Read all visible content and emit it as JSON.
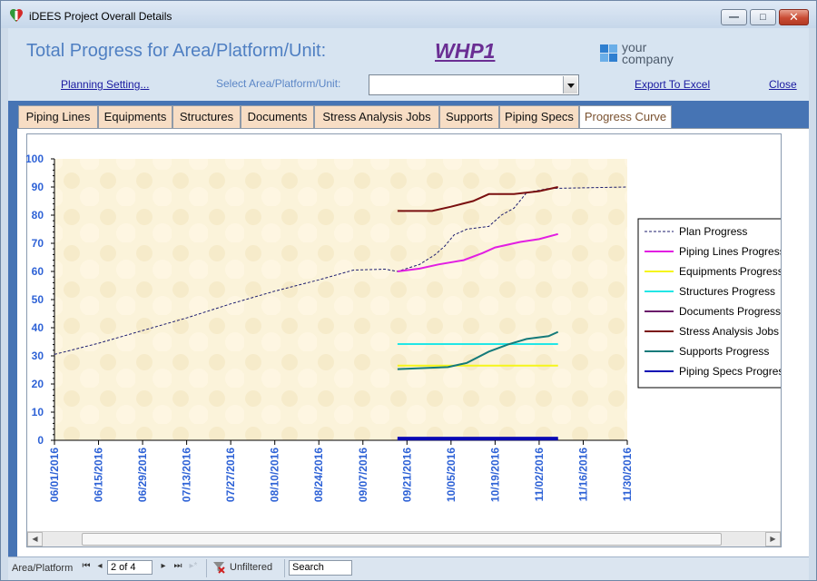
{
  "window": {
    "title": "iDEES Project Overall Details",
    "minimize_glyph": "—",
    "maximize_glyph": "□",
    "close_glyph": "✕"
  },
  "header": {
    "title": "Total Progress for Area/Platform/Unit:",
    "unit_code": "WHP1",
    "logo_line1": "your",
    "logo_line2": "company",
    "planning_link": "Planning Setting...",
    "select_label": "Select Area/Platform/Unit:",
    "select_value": "",
    "export_link": "Export To Excel",
    "close_link": "Close"
  },
  "tabs": [
    {
      "label": "Piping Lines",
      "active": false
    },
    {
      "label": "Equipments",
      "active": false
    },
    {
      "label": "Structures",
      "active": false
    },
    {
      "label": "Documents",
      "active": false
    },
    {
      "label": "Stress Analysis Jobs",
      "active": false
    },
    {
      "label": "Supports",
      "active": false
    },
    {
      "label": "Piping Specs",
      "active": false
    },
    {
      "label": "Progress Curve",
      "active": true
    }
  ],
  "chart_data": {
    "type": "line",
    "title": "",
    "xlabel": "",
    "ylabel": "",
    "ylim": [
      0,
      100
    ],
    "y_ticks": [
      0,
      10,
      20,
      30,
      40,
      50,
      60,
      70,
      80,
      90,
      100
    ],
    "x_ticks": [
      "06/01/2016",
      "06/15/2016",
      "06/29/2016",
      "07/13/2016",
      "07/27/2016",
      "08/10/2016",
      "08/24/2016",
      "09/07/2016",
      "09/21/2016",
      "10/05/2016",
      "10/19/2016",
      "11/02/2016",
      "11/16/2016",
      "11/30/2016"
    ],
    "x_range": [
      "06/01/2016",
      "11/30/2016"
    ],
    "grid": false,
    "legend_position": "right",
    "plot_background": "#fbf3da",
    "series": [
      {
        "name": "Plan Progress",
        "color": "#1c1c6e",
        "style": "dashed",
        "points": [
          [
            "06/01/2016",
            30.5
          ],
          [
            "06/15/2016",
            34.5
          ],
          [
            "06/29/2016",
            39
          ],
          [
            "07/13/2016",
            43.5
          ],
          [
            "07/27/2016",
            48.5
          ],
          [
            "08/10/2016",
            53
          ],
          [
            "08/24/2016",
            57
          ],
          [
            "09/04/2016",
            60.5
          ],
          [
            "09/14/2016",
            60.8
          ],
          [
            "09/18/2016",
            60
          ],
          [
            "09/25/2016",
            62.5
          ],
          [
            "09/30/2016",
            66
          ],
          [
            "10/03/2016",
            69
          ],
          [
            "10/06/2016",
            73
          ],
          [
            "10/10/2016",
            75
          ],
          [
            "10/17/2016",
            76
          ],
          [
            "10/21/2016",
            80
          ],
          [
            "10/25/2016",
            82.5
          ],
          [
            "10/29/2016",
            88
          ],
          [
            "11/05/2016",
            89.5
          ],
          [
            "11/30/2016",
            90
          ]
        ]
      },
      {
        "name": "Piping Lines Progress",
        "color": "#e21ee2",
        "style": "solid",
        "points": [
          [
            "09/18/2016",
            60
          ],
          [
            "09/25/2016",
            61
          ],
          [
            "10/01/2016",
            62.5
          ],
          [
            "10/09/2016",
            64
          ],
          [
            "10/15/2016",
            66.5
          ],
          [
            "10/19/2016",
            68.5
          ],
          [
            "10/27/2016",
            70.5
          ],
          [
            "11/02/2016",
            71.5
          ],
          [
            "11/08/2016",
            73.3
          ]
        ]
      },
      {
        "name": "Equipments Progress",
        "color": "#f5f51a",
        "style": "solid",
        "points": [
          [
            "09/18/2016",
            26.5
          ],
          [
            "11/08/2016",
            26.5
          ]
        ]
      },
      {
        "name": "Structures Progress",
        "color": "#22e6e6",
        "style": "solid",
        "points": [
          [
            "09/18/2016",
            34.2
          ],
          [
            "11/08/2016",
            34.2
          ]
        ]
      },
      {
        "name": "Documents Progress",
        "color": "#6a1a6a",
        "style": "solid",
        "points": [
          [
            "09/18/2016",
            0.5
          ],
          [
            "11/08/2016",
            0.5
          ]
        ]
      },
      {
        "name": "Stress Analysis Jobs Progress",
        "color": "#7a1010",
        "style": "solid",
        "points": [
          [
            "09/18/2016",
            81.5
          ],
          [
            "09/29/2016",
            81.5
          ],
          [
            "10/05/2016",
            83
          ],
          [
            "10/12/2016",
            85
          ],
          [
            "10/17/2016",
            87.5
          ],
          [
            "10/25/2016",
            87.5
          ],
          [
            "11/02/2016",
            88.5
          ],
          [
            "11/08/2016",
            90
          ]
        ]
      },
      {
        "name": "Supports Progress",
        "color": "#157a7a",
        "style": "solid",
        "points": [
          [
            "09/18/2016",
            25.3
          ],
          [
            "10/04/2016",
            26
          ],
          [
            "10/10/2016",
            27.5
          ],
          [
            "10/17/2016",
            31.5
          ],
          [
            "10/23/2016",
            34
          ],
          [
            "10/29/2016",
            36
          ],
          [
            "11/05/2016",
            37
          ],
          [
            "11/08/2016",
            38.5
          ]
        ]
      },
      {
        "name": "Piping Specs Progress",
        "color": "#0a0ab4",
        "style": "solid",
        "points": [
          [
            "09/18/2016",
            0.6
          ],
          [
            "11/08/2016",
            0.6
          ]
        ]
      }
    ]
  },
  "navigation": {
    "label": "Area/Platform",
    "first_glyph": "⏮",
    "prev_glyph": "◂",
    "next_glyph": "▸",
    "last_glyph": "⏭",
    "new_glyph": "▸*",
    "record": "2 of 4",
    "filter_status": "Unfiltered",
    "search_placeholder": "Search"
  }
}
